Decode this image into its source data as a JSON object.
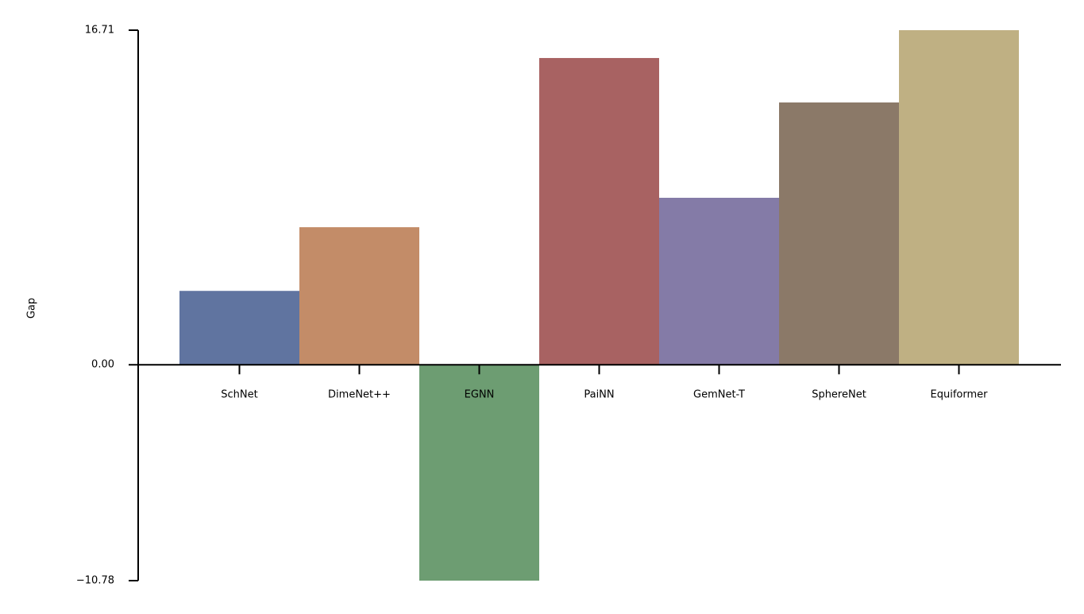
{
  "chart_data": {
    "type": "bar",
    "ylabel": "Gap",
    "categories": [
      "SchNet",
      "DimeNet++",
      "EGNN",
      "PaiNN",
      "GemNet-T",
      "SphereNet",
      "Equiformer"
    ],
    "values": [
      3.69,
      6.87,
      -10.78,
      15.32,
      8.34,
      13.1,
      16.71
    ],
    "colors": [
      "#6074a0",
      "#c38c68",
      "#6d9d72",
      "#a86262",
      "#847ba7",
      "#8b7968",
      "#bfb083"
    ],
    "ylim": [
      -10.78,
      16.71
    ],
    "yticks": [
      {
        "value": -10.78,
        "label": "−10.78"
      },
      {
        "value": 0,
        "label": "0.00"
      },
      16.71
    ],
    "grid": false
  }
}
